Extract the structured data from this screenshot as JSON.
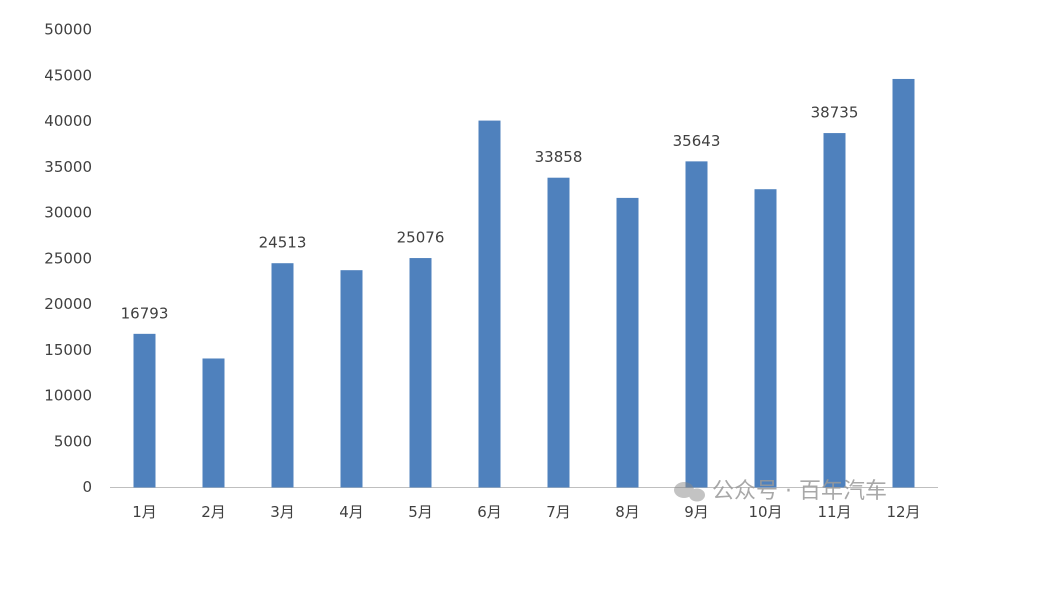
{
  "chart_data": {
    "type": "bar",
    "categories": [
      "1月",
      "2月",
      "3月",
      "4月",
      "5月",
      "6月",
      "7月",
      "8月",
      "9月",
      "10月",
      "11月",
      "12月"
    ],
    "values": [
      16793,
      14100,
      24513,
      23750,
      25076,
      40100,
      33858,
      31650,
      35643,
      32600,
      38735,
      44650
    ],
    "value_labels": [
      "16793",
      null,
      "24513",
      null,
      "25076",
      null,
      "33858",
      null,
      "35643",
      null,
      "38735",
      null
    ],
    "color": "#4f81bd",
    "ylim": [
      0,
      50000
    ],
    "yticks": [
      0,
      5000,
      10000,
      15000,
      20000,
      25000,
      30000,
      35000,
      40000,
      45000,
      50000
    ],
    "grid": false,
    "watermark": "公众号 · 百年汽车"
  }
}
